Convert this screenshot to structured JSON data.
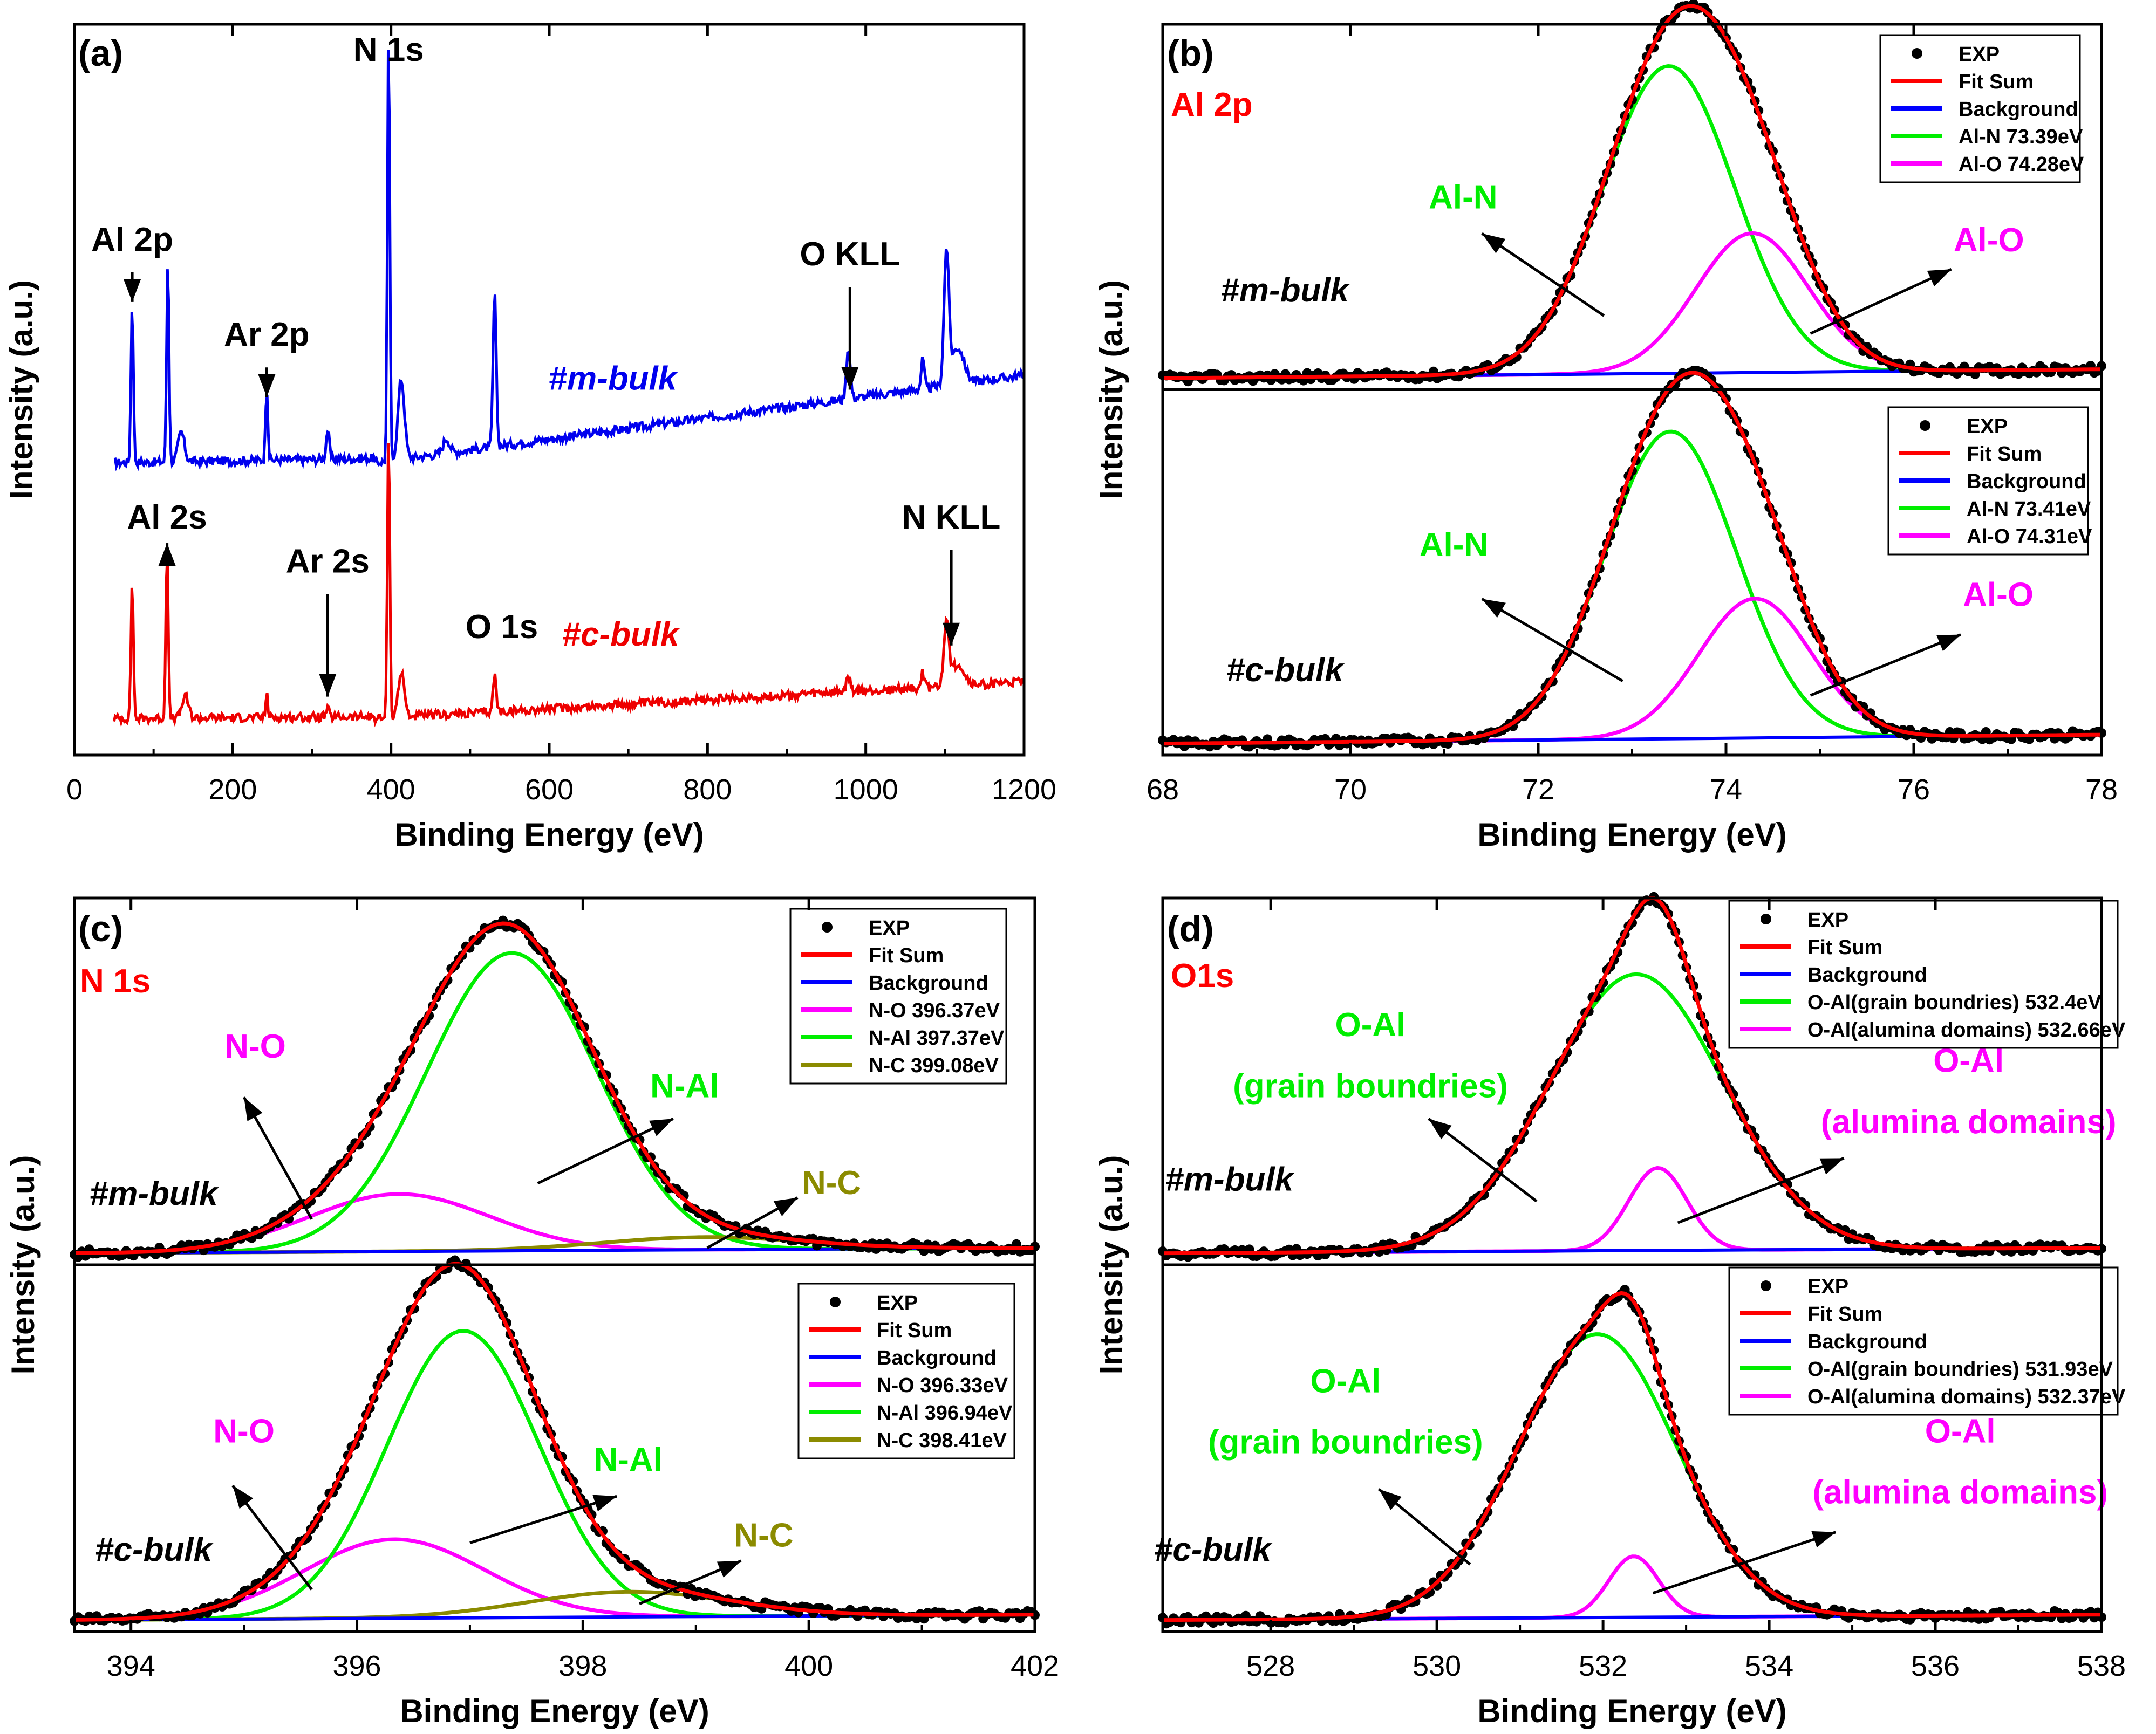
{
  "figure": {
    "axis_label_x": "Binding Energy (eV)",
    "axis_label_y": "Intensity (a.u.)"
  },
  "chart_data": [
    {
      "type": "line",
      "panel": "(a)",
      "title": "",
      "xlabel": "Binding Energy (eV)",
      "ylabel": "Intensity (a.u.)",
      "xlim": [
        0,
        1200
      ],
      "ylim": [
        0,
        1
      ],
      "xticks": [
        0,
        200,
        400,
        600,
        800,
        1000,
        1200
      ],
      "grid": false,
      "series": [
        {
          "name": "#m-bulk",
          "color": "#0000ee",
          "baseline": 0.4,
          "end": 0.52,
          "peaks": [
            [
              73,
              0.22,
              1.5
            ],
            [
              118,
              0.28,
              1.5
            ],
            [
              135,
              0.04,
              4
            ],
            [
              243,
              0.1,
              1.5
            ],
            [
              320,
              0.04,
              2
            ],
            [
              397,
              0.59,
              1.5
            ],
            [
              413,
              0.11,
              4
            ],
            [
              470,
              0.02,
              4
            ],
            [
              531,
              0.21,
              2
            ],
            [
              978,
              0.07,
              2.5
            ],
            [
              1072,
              0.04,
              2
            ],
            [
              1102,
              0.18,
              3
            ],
            [
              1116,
              0.05,
              8
            ]
          ]
        },
        {
          "name": "#c-bulk",
          "color": "#ee0000",
          "baseline": 0.05,
          "end": 0.1,
          "peaks": [
            [
              73,
              0.19,
              1.5
            ],
            [
              117,
              0.24,
              1.5
            ],
            [
              140,
              0.03,
              4
            ],
            [
              243,
              0.03,
              1.5
            ],
            [
              320,
              0.01,
              2
            ],
            [
              397,
              0.4,
              1.5
            ],
            [
              413,
              0.06,
              4
            ],
            [
              531,
              0.05,
              2
            ],
            [
              978,
              0.02,
              2.5
            ],
            [
              1072,
              0.02,
              2
            ],
            [
              1102,
              0.09,
              3
            ],
            [
              1116,
              0.03,
              8
            ]
          ]
        }
      ],
      "annotations": [
        {
          "text": "Al 2p",
          "x": 73,
          "y": 0.69,
          "arrow_to": [
            73,
            0.62
          ]
        },
        {
          "text": "Al 2s",
          "x": 117,
          "y": 0.31,
          "arrow_to": [
            117,
            0.29
          ]
        },
        {
          "text": "Ar 2p",
          "x": 243,
          "y": 0.56,
          "arrow_to": [
            243,
            0.49
          ]
        },
        {
          "text": "Ar 2s",
          "x": 320,
          "y": 0.25,
          "arrow_to": [
            320,
            0.08
          ]
        },
        {
          "text": "N 1s",
          "x": 397,
          "y": 0.95
        },
        {
          "text": "O 1s",
          "x": 540,
          "y": 0.16
        },
        {
          "text": "O KLL",
          "x": 980,
          "y": 0.67,
          "arrow_to": [
            980,
            0.5
          ]
        },
        {
          "text": "N KLL",
          "x": 1108,
          "y": 0.31,
          "arrow_to": [
            1108,
            0.15
          ]
        }
      ],
      "legend_labels": [
        {
          "text": "#m-bulk",
          "x": 680,
          "y": 0.5,
          "color": "#0000ee"
        },
        {
          "text": "#c-bulk",
          "x": 690,
          "y": 0.15,
          "color": "#ee0000"
        }
      ]
    },
    {
      "type": "line",
      "panel": "(b)",
      "title": "Al 2p",
      "xlabel": "Binding Energy (eV)",
      "ylabel": "Intensity (a.u.)",
      "xlim": [
        68,
        78
      ],
      "xticks": [
        68,
        70,
        72,
        74,
        76,
        78
      ],
      "grid": false,
      "subplots": [
        {
          "sample": "#m-bulk",
          "components": [
            {
              "name": "EXP",
              "kind": "scatter",
              "color": "#000000"
            },
            {
              "name": "Fit Sum",
              "color": "#ff0000"
            },
            {
              "name": "Background",
              "color": "#0000ff",
              "from": [
                68,
                0.005
              ],
              "to": [
                78,
                0.03
              ]
            },
            {
              "name": "Al-N 73.39eV",
              "center": 73.39,
              "height": 0.86,
              "sigma": 0.7,
              "color": "#00ee00"
            },
            {
              "name": "Al-O 74.28eV",
              "center": 74.28,
              "height": 0.39,
              "sigma": 0.6,
              "color": "#ff00ff"
            }
          ],
          "annotations": [
            {
              "text": "Al-N",
              "x": 71.2,
              "y": 0.48,
              "color": "#00ee00",
              "arrow_from": [
                72.7,
                0.18
              ],
              "arrow_to": [
                71.4,
                0.41
              ]
            },
            {
              "text": "Al-O",
              "x": 76.8,
              "y": 0.36,
              "color": "#ff00ff",
              "arrow_from": [
                74.9,
                0.13
              ],
              "arrow_to": [
                76.4,
                0.31
              ]
            },
            {
              "text": "#m-bulk",
              "x": 69.3,
              "y": 0.22,
              "color": "#000000"
            }
          ]
        },
        {
          "sample": "#c-bulk",
          "components": [
            {
              "name": "EXP",
              "kind": "scatter",
              "color": "#000000"
            },
            {
              "name": "Fit Sum",
              "color": "#ff0000"
            },
            {
              "name": "Background",
              "color": "#0000ff",
              "from": [
                68,
                0.005
              ],
              "to": [
                78,
                0.03
              ]
            },
            {
              "name": "Al-N 73.41eV",
              "center": 73.41,
              "height": 0.86,
              "sigma": 0.7,
              "color": "#00ee00"
            },
            {
              "name": "Al-O 74.31eV",
              "center": 74.31,
              "height": 0.39,
              "sigma": 0.6,
              "color": "#ff00ff"
            }
          ],
          "annotations": [
            {
              "text": "Al-N",
              "x": 71.1,
              "y": 0.53,
              "color": "#00ee00",
              "arrow_from": [
                72.9,
                0.18
              ],
              "arrow_to": [
                71.4,
                0.41
              ]
            },
            {
              "text": "Al-O",
              "x": 76.9,
              "y": 0.39,
              "color": "#ff00ff",
              "arrow_from": [
                74.9,
                0.14
              ],
              "arrow_to": [
                76.5,
                0.31
              ]
            },
            {
              "text": "#c-bulk",
              "x": 69.3,
              "y": 0.18,
              "color": "#000000"
            }
          ]
        }
      ]
    },
    {
      "type": "line",
      "panel": "(c)",
      "title": "N 1s",
      "xlabel": "Binding Energy (eV)",
      "ylabel": "Intensity (a.u.)",
      "xlim": [
        393.5,
        402
      ],
      "xticks": [
        394,
        396,
        398,
        400,
        402
      ],
      "grid": false,
      "subplots": [
        {
          "sample": "#m-bulk",
          "components": [
            {
              "name": "EXP",
              "kind": "scatter",
              "color": "#000000"
            },
            {
              "name": "Fit Sum",
              "color": "#ff0000"
            },
            {
              "name": "Background",
              "color": "#0000ff",
              "from": [
                393.5,
                0.005
              ],
              "to": [
                402,
                0.02
              ]
            },
            {
              "name": "N-O 396.37eV",
              "center": 396.37,
              "height": 0.16,
              "sigma": 0.8,
              "color": "#ff00ff"
            },
            {
              "name": "N-Al 397.37eV",
              "center": 397.37,
              "height": 0.83,
              "sigma": 0.75,
              "color": "#00ee00"
            },
            {
              "name": "N-C 399.08eV",
              "center": 399.08,
              "height": 0.035,
              "sigma": 0.9,
              "color": "#8b8b00"
            }
          ],
          "annotations": [
            {
              "text": "N-O",
              "x": 395.1,
              "y": 0.55,
              "color": "#ff00ff",
              "arrow_from": [
                395.6,
                0.1
              ],
              "arrow_to": [
                395.0,
                0.44
              ]
            },
            {
              "text": "N-Al",
              "x": 398.9,
              "y": 0.44,
              "color": "#00ee00",
              "arrow_from": [
                397.6,
                0.2
              ],
              "arrow_to": [
                398.8,
                0.38
              ]
            },
            {
              "text": "N-C",
              "x": 400.2,
              "y": 0.17,
              "color": "#8b8b00",
              "arrow_from": [
                399.1,
                0.02
              ],
              "arrow_to": [
                399.9,
                0.16
              ]
            },
            {
              "text": "#m-bulk",
              "x": 394.2,
              "y": 0.14,
              "color": "#000000"
            }
          ]
        },
        {
          "sample": "#c-bulk",
          "components": [
            {
              "name": "EXP",
              "kind": "scatter",
              "color": "#000000"
            },
            {
              "name": "Fit Sum",
              "color": "#ff0000"
            },
            {
              "name": "Background",
              "color": "#0000ff",
              "from": [
                393.5,
                0.005
              ],
              "to": [
                402,
                0.02
              ]
            },
            {
              "name": "N-O 396.33eV",
              "center": 396.33,
              "height": 0.22,
              "sigma": 0.8,
              "color": "#ff00ff"
            },
            {
              "name": "N-Al 396.94eV",
              "center": 396.94,
              "height": 0.8,
              "sigma": 0.67,
              "color": "#00ee00"
            },
            {
              "name": "N-C 398.41eV",
              "center": 398.41,
              "height": 0.07,
              "sigma": 0.9,
              "color": "#8b8b00"
            }
          ],
          "annotations": [
            {
              "text": "N-O",
              "x": 395.0,
              "y": 0.5,
              "color": "#ff00ff",
              "arrow_from": [
                395.6,
                0.09
              ],
              "arrow_to": [
                394.9,
                0.38
              ]
            },
            {
              "text": "N-Al",
              "x": 398.4,
              "y": 0.42,
              "color": "#00ee00",
              "arrow_from": [
                397.0,
                0.22
              ],
              "arrow_to": [
                398.3,
                0.35
              ]
            },
            {
              "text": "N-C",
              "x": 399.6,
              "y": 0.21,
              "color": "#8b8b00",
              "arrow_from": [
                398.5,
                0.05
              ],
              "arrow_to": [
                399.4,
                0.17
              ]
            },
            {
              "text": "#c-bulk",
              "x": 394.2,
              "y": 0.17,
              "color": "#000000"
            }
          ]
        }
      ]
    },
    {
      "type": "line",
      "panel": "(d)",
      "title": "O1s",
      "xlabel": "Binding Energy (eV)",
      "ylabel": "Intensity (a.u.)",
      "xlim": [
        526.7,
        538
      ],
      "xticks": [
        528,
        530,
        532,
        534,
        536,
        538
      ],
      "grid": false,
      "subplots": [
        {
          "sample": "#m-bulk",
          "components": [
            {
              "name": "EXP",
              "kind": "scatter",
              "color": "#000000"
            },
            {
              "name": "Fit Sum",
              "color": "#ff0000"
            },
            {
              "name": "Background",
              "color": "#0000ff",
              "from": [
                526.7,
                0.005
              ],
              "to": [
                538,
                0.02
              ]
            },
            {
              "name": "O-Al(grain boundries) 532.4eV",
              "center": 532.4,
              "height": 0.77,
              "sigma": 1.05,
              "color": "#00ee00"
            },
            {
              "name": "O-Al(alumina domains) 532.66eV",
              "center": 532.66,
              "height": 0.23,
              "sigma": 0.35,
              "color": "#ff00ff"
            }
          ],
          "annotations": [
            {
              "text": "O-Al",
              "x": 529.2,
              "y": 0.61,
              "color": "#00ee00"
            },
            {
              "text": "(grain boundries)",
              "x": 529.2,
              "y": 0.44,
              "color": "#00ee00",
              "arrow_from": [
                531.2,
                0.15
              ],
              "arrow_to": [
                529.9,
                0.38
              ]
            },
            {
              "text": "O-Al",
              "x": 536.4,
              "y": 0.51,
              "color": "#ff00ff"
            },
            {
              "text": "(alumina domains)",
              "x": 536.4,
              "y": 0.34,
              "color": "#ff00ff",
              "arrow_from": [
                532.9,
                0.09
              ],
              "arrow_to": [
                534.9,
                0.27
              ]
            },
            {
              "text": "#m-bulk",
              "x": 527.5,
              "y": 0.18,
              "color": "#000000"
            }
          ]
        },
        {
          "sample": "#c-bulk",
          "components": [
            {
              "name": "EXP",
              "kind": "scatter",
              "color": "#000000"
            },
            {
              "name": "Fit Sum",
              "color": "#ff0000"
            },
            {
              "name": "Background",
              "color": "#0000ff",
              "from": [
                526.7,
                0.005
              ],
              "to": [
                538,
                0.02
              ]
            },
            {
              "name": "O-Al(grain boundries) 531.93eV",
              "center": 531.93,
              "height": 0.79,
              "sigma": 0.95,
              "color": "#00ee00"
            },
            {
              "name": "O-Al(alumina domains) 532.37eV",
              "center": 532.37,
              "height": 0.17,
              "sigma": 0.3,
              "color": "#ff00ff"
            }
          ],
          "annotations": [
            {
              "text": "O-Al",
              "x": 528.9,
              "y": 0.64,
              "color": "#00ee00"
            },
            {
              "text": "(grain boundries)",
              "x": 528.9,
              "y": 0.47,
              "color": "#00ee00",
              "arrow_from": [
                530.4,
                0.16
              ],
              "arrow_to": [
                529.3,
                0.37
              ]
            },
            {
              "text": "O-Al",
              "x": 536.3,
              "y": 0.5,
              "color": "#ff00ff"
            },
            {
              "text": "(alumina domains)",
              "x": 536.3,
              "y": 0.33,
              "color": "#ff00ff",
              "arrow_from": [
                532.6,
                0.08
              ],
              "arrow_to": [
                534.8,
                0.25
              ]
            },
            {
              "text": "#c-bulk",
              "x": 527.3,
              "y": 0.17,
              "color": "#000000"
            }
          ]
        }
      ]
    }
  ]
}
